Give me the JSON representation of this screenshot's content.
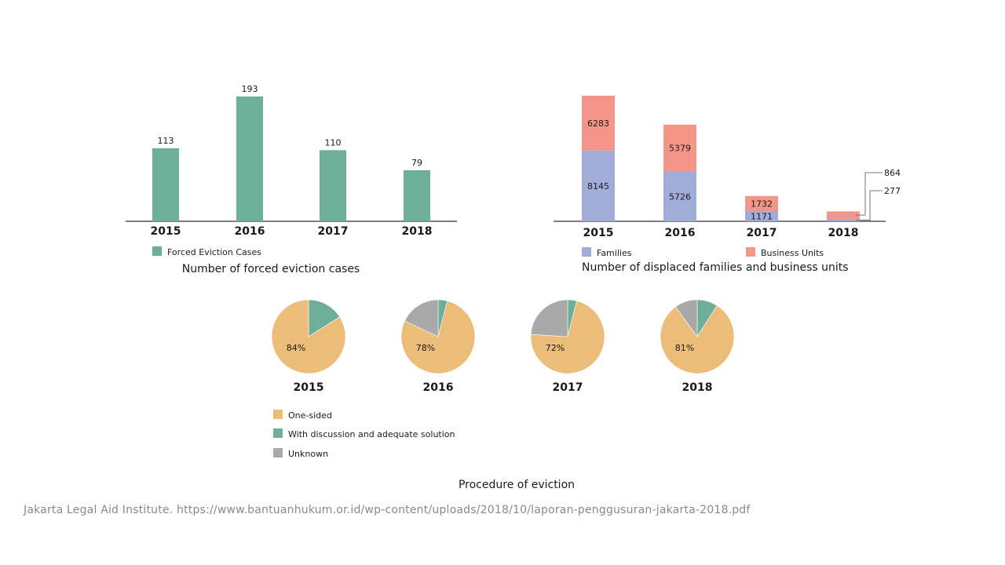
{
  "colors": {
    "eviction": "#6daf98",
    "families": "#a1acd8",
    "business": "#f4958a",
    "one_sided": "#ebbd78",
    "discussion": "#6daf98",
    "unknown": "#a9a9a9",
    "axis": "#555555"
  },
  "chart_data": [
    {
      "type": "bar",
      "title": "Number of forced eviction cases",
      "categories": [
        "2015",
        "2016",
        "2017",
        "2018"
      ],
      "series": [
        {
          "name": "Forced Eviction Cases",
          "values": [
            113,
            193,
            110,
            79
          ]
        }
      ],
      "ylim": [
        0,
        193
      ],
      "legend": "bottom-left"
    },
    {
      "type": "bar",
      "stacked": true,
      "title": "Number of displaced families and business units",
      "categories": [
        "2015",
        "2016",
        "2017",
        "2018"
      ],
      "series": [
        {
          "name": "Families",
          "values": [
            8145,
            5726,
            1171,
            277
          ]
        },
        {
          "name": "Business Units",
          "values": [
            6283,
            5379,
            1732,
            864
          ]
        }
      ],
      "ylim": [
        0,
        14428
      ],
      "legend": "bottom"
    },
    {
      "type": "pie",
      "title": "Procedure of eviction",
      "categories": [
        "One-sided",
        "With discussion and adequate solution",
        "Unknown"
      ],
      "pies": [
        {
          "label": "2015",
          "values": [
            84,
            16,
            0
          ],
          "value_label": "84%"
        },
        {
          "label": "2016",
          "values": [
            78,
            4,
            18
          ],
          "value_label": "78%"
        },
        {
          "label": "2017",
          "values": [
            72,
            4,
            24
          ],
          "value_label": "72%"
        },
        {
          "label": "2018",
          "values": [
            81,
            9,
            10
          ],
          "value_label": "81%"
        }
      ],
      "legend": "bottom-left"
    }
  ],
  "source": "Jakarta Legal Aid Institute. https://www.bantuanhukum.or.id/wp-content/uploads/2018/10/laporan-penggusuran-jakarta-2018.pdf"
}
